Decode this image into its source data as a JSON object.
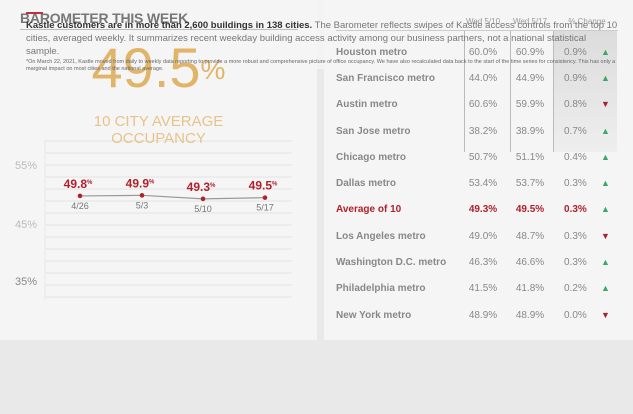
{
  "left": {
    "title": "BAROMETER THIS WEEK",
    "big_value": "49.5",
    "big_unit": "%",
    "subtitle_line1": "10 CITY AVERAGE",
    "subtitle_line2": "OCCUPANCY"
  },
  "chart_data": {
    "type": "line",
    "x": [
      "4/26",
      "5/3",
      "5/10",
      "5/17"
    ],
    "values": [
      49.8,
      49.9,
      49.3,
      49.5
    ],
    "labels": [
      "49.8",
      "49.9",
      "49.3",
      "49.5"
    ],
    "unit": "%",
    "yticks": [
      "55%",
      "45%",
      "35%"
    ],
    "ylim": [
      30,
      58
    ],
    "grid": true
  },
  "table": {
    "headers": [
      "Wed 5/10",
      "Wed 5/17",
      "% Change"
    ],
    "rows": [
      {
        "name": "Houston metro",
        "a": "60.0%",
        "b": "60.9%",
        "c": "0.9%",
        "dir": "up"
      },
      {
        "name": "San Francisco metro",
        "a": "44.0%",
        "b": "44.9%",
        "c": "0.9%",
        "dir": "up"
      },
      {
        "name": "Austin metro",
        "a": "60.6%",
        "b": "59.9%",
        "c": "0.8%",
        "dir": "down"
      },
      {
        "name": "San Jose metro",
        "a": "38.2%",
        "b": "38.9%",
        "c": "0.7%",
        "dir": "up"
      },
      {
        "name": "Chicago metro",
        "a": "50.7%",
        "b": "51.1%",
        "c": "0.4%",
        "dir": "up"
      },
      {
        "name": "Dallas metro",
        "a": "53.4%",
        "b": "53.7%",
        "c": "0.3%",
        "dir": "up"
      },
      {
        "name": "Average of 10",
        "a": "49.3%",
        "b": "49.5%",
        "c": "0.3%",
        "dir": "up"
      },
      {
        "name": "Los Angeles metro",
        "a": "49.0%",
        "b": "48.7%",
        "c": "0.3%",
        "dir": "down"
      },
      {
        "name": "Washington D.C. metro",
        "a": "46.3%",
        "b": "46.6%",
        "c": "0.3%",
        "dir": "up"
      },
      {
        "name": "Philadelphia metro",
        "a": "41.5%",
        "b": "41.8%",
        "c": "0.2%",
        "dir": "up"
      },
      {
        "name": "New York metro",
        "a": "48.9%",
        "b": "48.9%",
        "c": "0.0%",
        "dir": "down"
      }
    ]
  },
  "footer": {
    "bold": "Kastle customers are in more than 2,600 buildings in 138 cities.",
    "text": " The Barometer reflects swipes of Kastle access controls from the top 10 cities, averaged weekly. It summarizes recent weekday building access activity among our business partners, not a national statistical sample.",
    "note": "*On March 22, 2021, Kastle moved from daily to weekly data reporting to provide a more robust and comprehensive picture of office occupancy. We have also recalculated data back to the start of the time series for consistency. This has only a marginal impact on most cities and the national average."
  },
  "colors": {
    "accent": "#b0202a",
    "up": "#3aa86a",
    "gold": "#e0b56a"
  }
}
